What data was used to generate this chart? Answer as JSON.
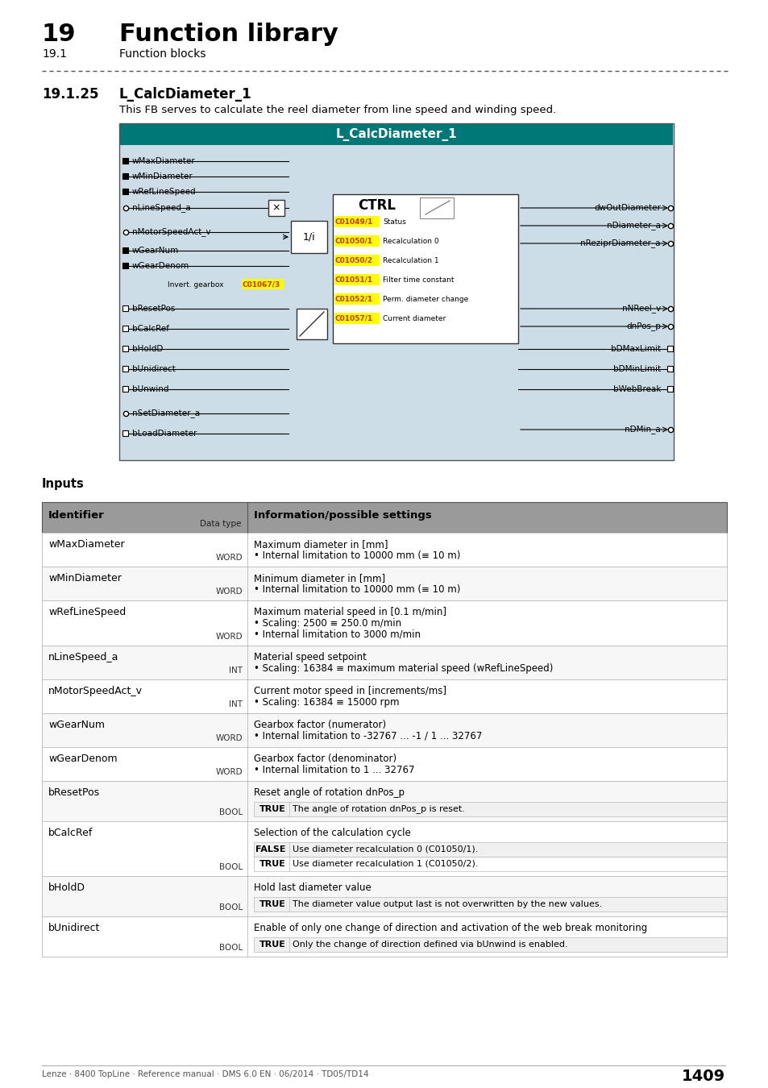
{
  "page_num": "1409",
  "chapter_num": "19",
  "chapter_title": "Function library",
  "section_num": "19.1",
  "section_title": "Function blocks",
  "subsection_num": "19.1.25",
  "subsection_title": "L_CalcDiameter_1",
  "description": "This FB serves to calculate the reel diameter from line speed and winding speed.",
  "footer_text": "Lenze · 8400 TopLine · Reference manual · DMS 6.0 EN · 06/2014 · TD05/TD14",
  "block_title": "L_CalcDiameter_1",
  "block_bg": "#ccdde8",
  "block_header_bg": "#007878",
  "block_header_text": "#ffffff",
  "inputs_left": [
    "wMaxDiameter",
    "wMinDiameter",
    "wRefLineSpeed",
    "nLineSpeed_a",
    "nMotorSpeedAct_v",
    "wGearNum",
    "wGearDenom",
    "bResetPos",
    "bCalcRef",
    "bHoldD",
    "bUnidirect",
    "bUnwind",
    "nSetDiameter_a",
    "bLoadDiameter"
  ],
  "outputs_right": [
    "dwOutDiameter",
    "nDiameter_a",
    "nReziprDiameter_a",
    "nNReel_v",
    "dnPos_p",
    "bDMaxLimit",
    "bDMinLimit",
    "bWebBreak",
    "nDMin_a"
  ],
  "ctrl_codes": [
    {
      "code": "C01049/1",
      "label": "Status"
    },
    {
      "code": "C01050/1",
      "label": "Recalculation 0"
    },
    {
      "code": "C01050/2",
      "label": "Recalculation 1"
    },
    {
      "code": "C01051/1",
      "label": "Filter time constant"
    },
    {
      "code": "C01052/1",
      "label": "Perm. diameter change"
    },
    {
      "code": "C01057/1",
      "label": "Current diameter"
    }
  ],
  "invert_gearbox_code": "C01067/3",
  "table_header_bg": "#9a9a9a",
  "table_rows": [
    {
      "identifier": "wMaxDiameter",
      "datatype": "WORD",
      "info": [
        "Maximum diameter in [mm]",
        "• Internal limitation to 10000 mm (≡ 10 m)"
      ],
      "subrows": []
    },
    {
      "identifier": "wMinDiameter",
      "datatype": "WORD",
      "info": [
        "Minimum diameter in [mm]",
        "• Internal limitation to 10000 mm (≡ 10 m)"
      ],
      "subrows": []
    },
    {
      "identifier": "wRefLineSpeed",
      "datatype": "WORD",
      "info": [
        "Maximum material speed in [0.1 m/min]",
        "• Scaling: 2500 ≡ 250.0 m/min",
        "• Internal limitation to 3000 m/min"
      ],
      "subrows": []
    },
    {
      "identifier": "nLineSpeed_a",
      "datatype": "INT",
      "info": [
        "Material speed setpoint",
        "• Scaling: 16384 ≡ maximum material speed (wRefLineSpeed)"
      ],
      "subrows": []
    },
    {
      "identifier": "nMotorSpeedAct_v",
      "datatype": "INT",
      "info": [
        "Current motor speed in [increments/ms]",
        "• Scaling: 16384 ≡ 15000 rpm"
      ],
      "subrows": []
    },
    {
      "identifier": "wGearNum",
      "datatype": "WORD",
      "info": [
        "Gearbox factor (numerator)",
        "• Internal limitation to -32767 ... -1 / 1 ... 32767"
      ],
      "subrows": []
    },
    {
      "identifier": "wGearDenom",
      "datatype": "WORD",
      "info": [
        "Gearbox factor (denominator)",
        "• Internal limitation to 1 ... 32767"
      ],
      "subrows": []
    },
    {
      "identifier": "bResetPos",
      "datatype": "BOOL",
      "info": [
        "Reset angle of rotation dnPos_p"
      ],
      "subrows": [
        {
          "label": "TRUE",
          "text": "The angle of rotation dnPos_p is reset."
        }
      ]
    },
    {
      "identifier": "bCalcRef",
      "datatype": "BOOL",
      "info": [
        "Selection of the calculation cycle"
      ],
      "subrows": [
        {
          "label": "FALSE",
          "text": "Use diameter recalculation 0 (C01050/1)."
        },
        {
          "label": "TRUE",
          "text": "Use diameter recalculation 1 (C01050/2)."
        }
      ]
    },
    {
      "identifier": "bHoldD",
      "datatype": "BOOL",
      "info": [
        "Hold last diameter value"
      ],
      "subrows": [
        {
          "label": "TRUE",
          "text": "The diameter value output last is not overwritten by the new values."
        }
      ]
    },
    {
      "identifier": "bUnidirect",
      "datatype": "BOOL",
      "info": [
        "Enable of only one change of direction and activation of the web break monitoring"
      ],
      "subrows": [
        {
          "label": "TRUE",
          "text": "Only the change of direction defined via bUnwind is enabled."
        }
      ]
    }
  ]
}
